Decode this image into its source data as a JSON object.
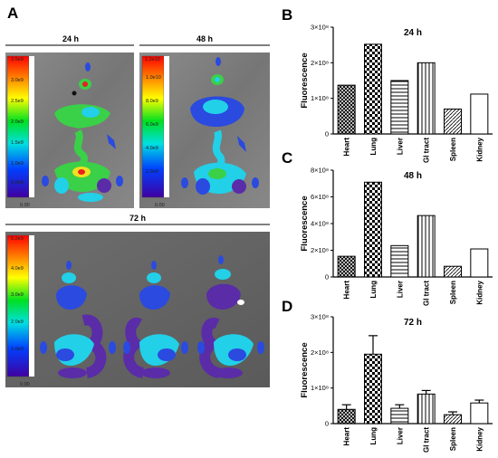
{
  "panels": {
    "A": {
      "letter": "A",
      "images": [
        {
          "title": "24 h",
          "scale_ticks": [
            "3.5e9",
            "3.0e9",
            "2.5e9",
            "2.0e9",
            "1.5e9",
            "1.0e9",
            "5.0e8",
            "0.00"
          ]
        },
        {
          "title": "48 h",
          "scale_ticks": [
            "1.2e10",
            "1.0e10",
            "8.0e9",
            "6.0e9",
            "4.0e9",
            "2.0e9",
            "0.00"
          ]
        },
        {
          "title": "72 h",
          "scale_ticks": [
            "5.2e9",
            "4.0e9",
            "3.0e9",
            "2.0e9",
            "1.0e9",
            "0.00"
          ]
        }
      ]
    },
    "B": {
      "letter": "B"
    },
    "C": {
      "letter": "C"
    },
    "D": {
      "letter": "D"
    }
  },
  "chart_data": [
    {
      "panel": "B",
      "type": "bar",
      "title": "24 h",
      "ylabel": "Fluorescence",
      "categories": [
        "Heart",
        "Lung",
        "Liver",
        "GI tract",
        "Spleen",
        "Kidney"
      ],
      "values": [
        137000000.0,
        252000000.0,
        150000000.0,
        200000000.0,
        70000000.0,
        112000000.0
      ],
      "ylim": [
        0,
        300000000.0
      ],
      "yticks": [
        0,
        100000000.0,
        200000000.0,
        300000000.0
      ],
      "ytick_labels": [
        "0",
        "1×10⁸",
        "2×10⁸",
        "3×10⁸"
      ],
      "grid": false
    },
    {
      "panel": "C",
      "type": "bar",
      "title": "48 h",
      "ylabel": "Fluorescence",
      "categories": [
        "Heart",
        "Lung",
        "Liver",
        "GI tract",
        "Spleen",
        "Kidney"
      ],
      "values": [
        155000000.0,
        710000000.0,
        235000000.0,
        460000000.0,
        80000000.0,
        210000000.0
      ],
      "ylim": [
        0,
        800000000.0
      ],
      "yticks": [
        0,
        200000000.0,
        400000000.0,
        600000000.0,
        800000000.0
      ],
      "ytick_labels": [
        "0",
        "2×10⁸",
        "4×10⁸",
        "6×10⁸",
        "8×10⁸"
      ],
      "grid": false
    },
    {
      "panel": "D",
      "type": "bar",
      "title": "72 h",
      "ylabel": "Fluorescence",
      "categories": [
        "Heart",
        "Lung",
        "Liver",
        "GI tract",
        "Spleen",
        "Kidney"
      ],
      "values": [
        40000000.0,
        195000000.0,
        43000000.0,
        83000000.0,
        25000000.0,
        58000000.0
      ],
      "errors": [
        13000000.0,
        52000000.0,
        10000000.0,
        10000000.0,
        8000000.0,
        8000000.0
      ],
      "ylim": [
        0,
        300000000.0
      ],
      "yticks": [
        0,
        100000000.0,
        200000000.0,
        300000000.0
      ],
      "ytick_labels": [
        "0",
        "1×10⁸",
        "2×10⁸",
        "3×10⁸"
      ],
      "grid": false
    }
  ],
  "colors": {
    "image_background": "#7a7a7a",
    "organ_blue": "#2a4ae0",
    "organ_purple": "#5a2ca8",
    "organ_cyan": "#22d0e8",
    "organ_green": "#3ad048",
    "organ_yellow": "#f0e020",
    "organ_red": "#e82020",
    "bar_stroke": "#000000"
  }
}
